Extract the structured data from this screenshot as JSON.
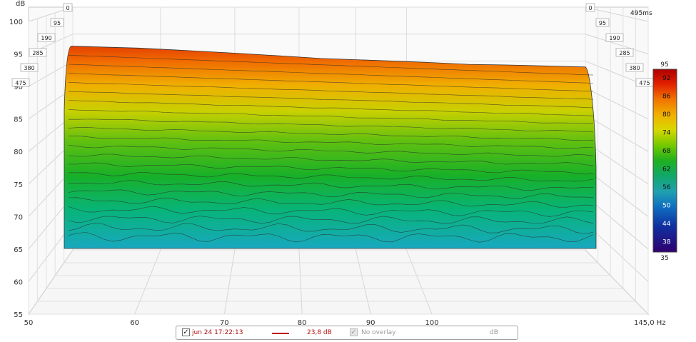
{
  "chart_data": {
    "type": "area",
    "description_kind": "waterfall",
    "y_axis": {
      "unit": "dB",
      "min": 55,
      "max": 100,
      "ticks": [
        55,
        60,
        65,
        70,
        75,
        80,
        85,
        90,
        95,
        100
      ]
    },
    "x_axis": {
      "unit": "Hz",
      "min": 50,
      "max": 145,
      "tick_labels": [
        "50",
        "60",
        "70",
        "80",
        "90",
        "100",
        "145,0 Hz"
      ],
      "tick_values": [
        50,
        60,
        70,
        80,
        90,
        100,
        145
      ]
    },
    "z_axis": {
      "unit": "ms",
      "left_labels": [
        "0",
        "95",
        "190",
        "285",
        "380",
        "475"
      ],
      "right_labels": [
        "0",
        "95",
        "190",
        "285",
        "380",
        "475"
      ],
      "end_label": "495ms"
    },
    "surface_front_top_db": [
      97.3,
      97.0,
      96.6,
      96.2,
      95.8,
      95.4,
      95.2,
      95.0,
      94.8,
      94.5,
      94.4,
      94.1
    ],
    "surface_front_top_hz": [
      55,
      62,
      68,
      74,
      80,
      86,
      92,
      98,
      104,
      112,
      120,
      138
    ],
    "surface_bottom_db": 64.0,
    "color_scale": {
      "max_label": "95",
      "min_label": "35",
      "ticks": [
        "92",
        "86",
        "80",
        "74",
        "68",
        "62",
        "56",
        "50",
        "44",
        "38"
      ],
      "stops": [
        "#b00000",
        "#e02000",
        "#f07000",
        "#f0b000",
        "#d8d800",
        "#70c800",
        "#20b020",
        "#10a868",
        "#20a0b0",
        "#1070c0",
        "#1030a0",
        "#300070"
      ]
    },
    "grid": true
  },
  "legend": {
    "measurement_checked": true,
    "measurement_label": "jun 24 17:22:13",
    "measurement_color": "#c01010",
    "measurement_value": "23,8 dB",
    "overlay_label": "No overlay",
    "overlay_unit": "dB"
  },
  "check_glyph": "✓"
}
